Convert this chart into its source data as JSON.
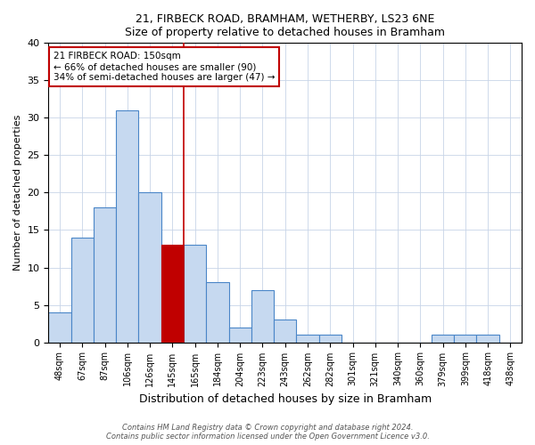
{
  "title1": "21, FIRBECK ROAD, BRAMHAM, WETHERBY, LS23 6NE",
  "title2": "Size of property relative to detached houses in Bramham",
  "xlabel": "Distribution of detached houses by size in Bramham",
  "ylabel": "Number of detached properties",
  "bin_labels": [
    "48sqm",
    "67sqm",
    "87sqm",
    "106sqm",
    "126sqm",
    "145sqm",
    "165sqm",
    "184sqm",
    "204sqm",
    "223sqm",
    "243sqm",
    "262sqm",
    "282sqm",
    "301sqm",
    "321sqm",
    "340sqm",
    "360sqm",
    "379sqm",
    "399sqm",
    "418sqm",
    "438sqm"
  ],
  "bar_heights": [
    4,
    14,
    18,
    31,
    20,
    13,
    13,
    8,
    2,
    7,
    3,
    1,
    1,
    0,
    0,
    0,
    0,
    1,
    1,
    1,
    0
  ],
  "bar_color": "#c6d9f0",
  "bar_edge_color": "#4a86c8",
  "highlight_bar_index": 5,
  "highlight_bar_color": "#c00000",
  "highlight_bar_edge_color": "#c00000",
  "vline_color": "#c00000",
  "annotation_line1": "21 FIRBECK ROAD: 150sqm",
  "annotation_line2": "← 66% of detached houses are smaller (90)",
  "annotation_line3": "34% of semi-detached houses are larger (47) →",
  "annotation_box_color": "#ffffff",
  "annotation_box_edge_color": "#c00000",
  "footnote_line1": "Contains HM Land Registry data © Crown copyright and database right 2024.",
  "footnote_line2": "Contains public sector information licensed under the Open Government Licence v3.0.",
  "ylim": [
    0,
    40
  ],
  "yticks": [
    0,
    5,
    10,
    15,
    20,
    25,
    30,
    35,
    40
  ],
  "fig_width": 6.0,
  "fig_height": 5.0,
  "dpi": 100
}
